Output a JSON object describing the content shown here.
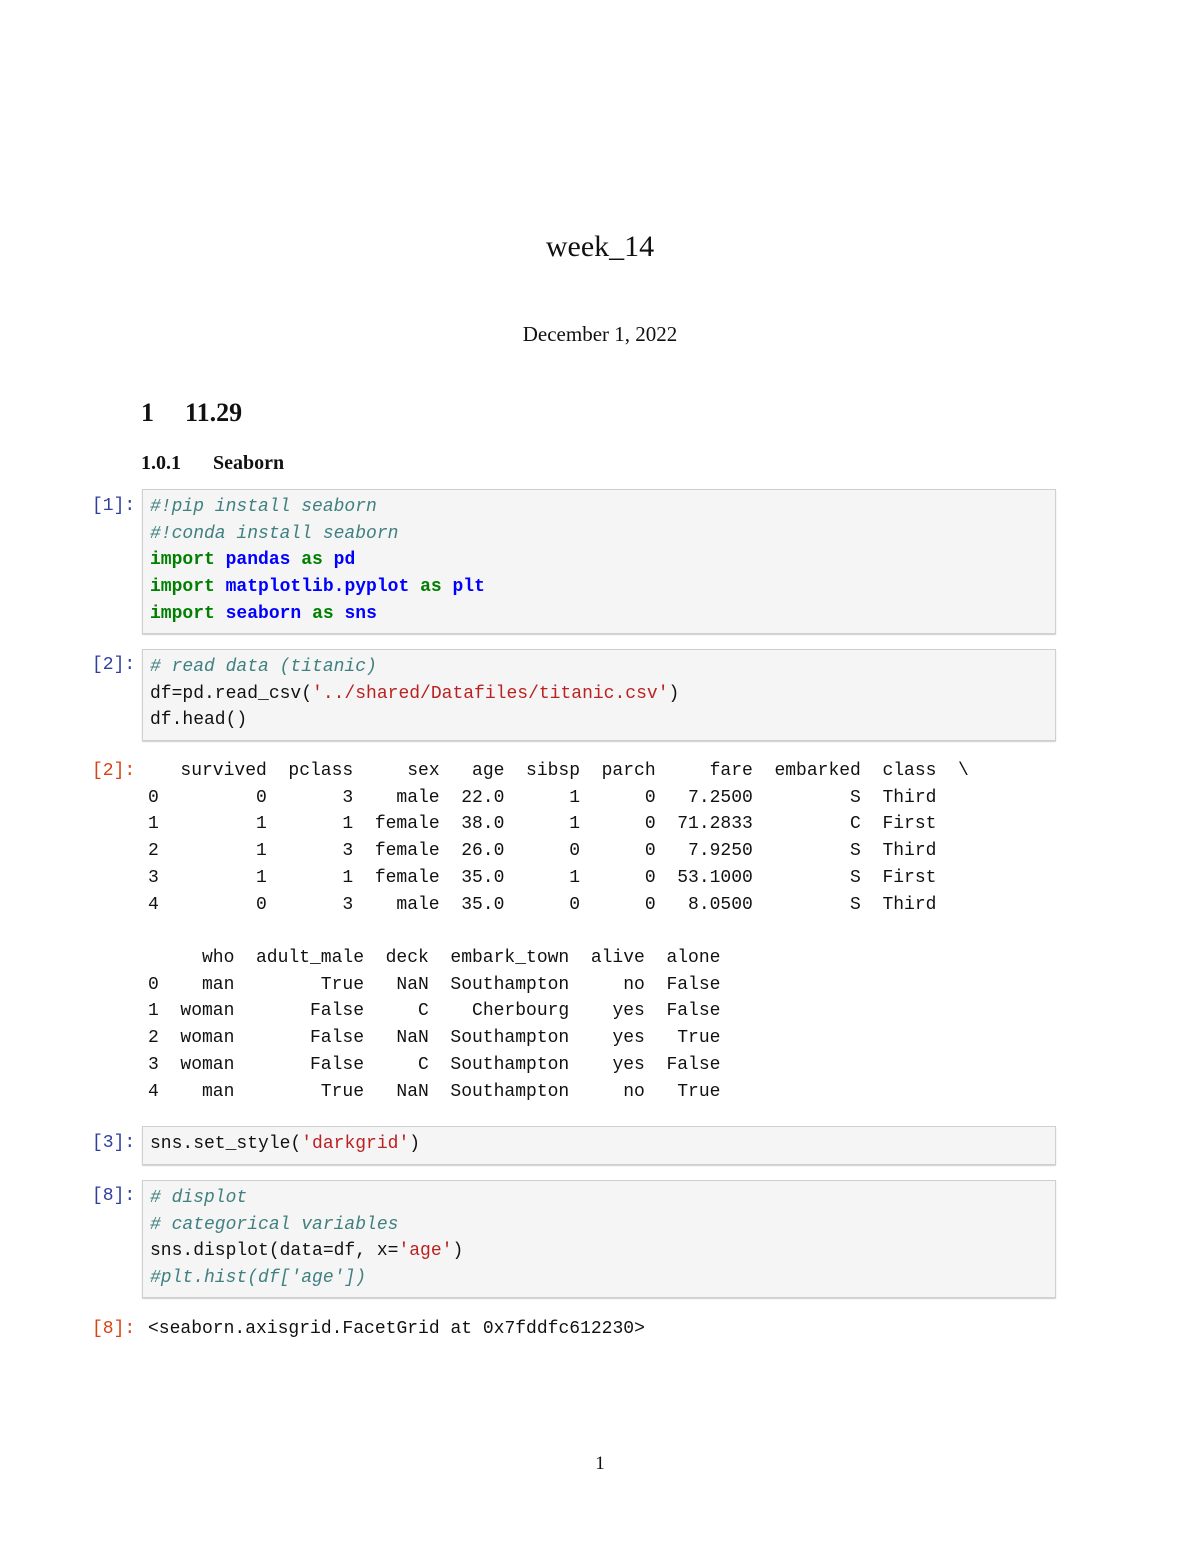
{
  "document": {
    "title": "week_14",
    "date": "December 1, 2022",
    "section": {
      "number": "1",
      "title": "11.29"
    },
    "subsection": {
      "number": "1.0.1",
      "title": "Seaborn"
    },
    "page_number": "1"
  },
  "cells": [
    {
      "prompt": "[1]:",
      "lines": [
        [
          {
            "t": "#!pip install seaborn",
            "c": "c"
          }
        ],
        [
          {
            "t": "#!conda install seaborn",
            "c": "c"
          }
        ],
        [
          {
            "t": "import",
            "c": "k"
          },
          {
            "t": " "
          },
          {
            "t": "pandas",
            "c": "n"
          },
          {
            "t": " "
          },
          {
            "t": "as",
            "c": "k"
          },
          {
            "t": " "
          },
          {
            "t": "pd",
            "c": "n"
          }
        ],
        [
          {
            "t": "import",
            "c": "k"
          },
          {
            "t": " "
          },
          {
            "t": "matplotlib.pyplot",
            "c": "n"
          },
          {
            "t": " "
          },
          {
            "t": "as",
            "c": "k"
          },
          {
            "t": " "
          },
          {
            "t": "plt",
            "c": "n"
          }
        ],
        [
          {
            "t": "import",
            "c": "k"
          },
          {
            "t": " "
          },
          {
            "t": "seaborn",
            "c": "n"
          },
          {
            "t": " "
          },
          {
            "t": "as",
            "c": "k"
          },
          {
            "t": " "
          },
          {
            "t": "sns",
            "c": "n"
          }
        ]
      ]
    },
    {
      "prompt": "[2]:",
      "lines": [
        [
          {
            "t": "# read data (titanic)",
            "c": "c"
          }
        ],
        [
          {
            "t": "df=pd.read_csv("
          },
          {
            "t": "'../shared/Datafiles/titanic.csv'",
            "c": "s"
          },
          {
            "t": ")"
          }
        ],
        [
          {
            "t": "df.head()"
          }
        ]
      ]
    },
    {
      "prompt": "[3]:",
      "lines": [
        [
          {
            "t": "sns.set_style("
          },
          {
            "t": "'darkgrid'",
            "c": "s"
          },
          {
            "t": ")"
          }
        ]
      ]
    },
    {
      "prompt": "[8]:",
      "lines": [
        [
          {
            "t": "# displot",
            "c": "c"
          }
        ],
        [
          {
            "t": "# categorical variables",
            "c": "c"
          }
        ],
        [
          {
            "t": "sns.displot(data=df, x="
          },
          {
            "t": "'age'",
            "c": "s"
          },
          {
            "t": ")"
          }
        ],
        [
          {
            "t": "#plt.hist(df['age'])",
            "c": "c"
          }
        ]
      ]
    }
  ],
  "outputs": {
    "df_prompt": "[2]:",
    "table1": {
      "columns": [
        "survived",
        "pclass",
        "sex",
        "age",
        "sibsp",
        "parch",
        "fare",
        "embarked",
        "class"
      ],
      "continuation": "\\",
      "index": [
        "0",
        "1",
        "2",
        "3",
        "4"
      ],
      "rows": [
        [
          "0",
          "3",
          "male",
          "22.0",
          "1",
          "0",
          "7.2500",
          "S",
          "Third"
        ],
        [
          "1",
          "1",
          "female",
          "38.0",
          "1",
          "0",
          "71.2833",
          "C",
          "First"
        ],
        [
          "1",
          "3",
          "female",
          "26.0",
          "0",
          "0",
          "7.9250",
          "S",
          "Third"
        ],
        [
          "1",
          "1",
          "female",
          "35.0",
          "1",
          "0",
          "53.1000",
          "S",
          "First"
        ],
        [
          "0",
          "3",
          "male",
          "35.0",
          "0",
          "0",
          "8.0500",
          "S",
          "Third"
        ]
      ]
    },
    "table2": {
      "columns": [
        "who",
        "adult_male",
        "deck",
        "embark_town",
        "alive",
        "alone"
      ],
      "index": [
        "0",
        "1",
        "2",
        "3",
        "4"
      ],
      "rows": [
        [
          "man",
          "True",
          "NaN",
          "Southampton",
          "no",
          "False"
        ],
        [
          "woman",
          "False",
          "C",
          "Cherbourg",
          "yes",
          "False"
        ],
        [
          "woman",
          "False",
          "NaN",
          "Southampton",
          "yes",
          "True"
        ],
        [
          "woman",
          "False",
          "C",
          "Southampton",
          "yes",
          "False"
        ],
        [
          "man",
          "True",
          "NaN",
          "Southampton",
          "no",
          "True"
        ]
      ]
    },
    "facet_prompt": "[8]:",
    "facet_text": "<seaborn.axisgrid.FacetGrid at 0x7fddfc612230>"
  }
}
